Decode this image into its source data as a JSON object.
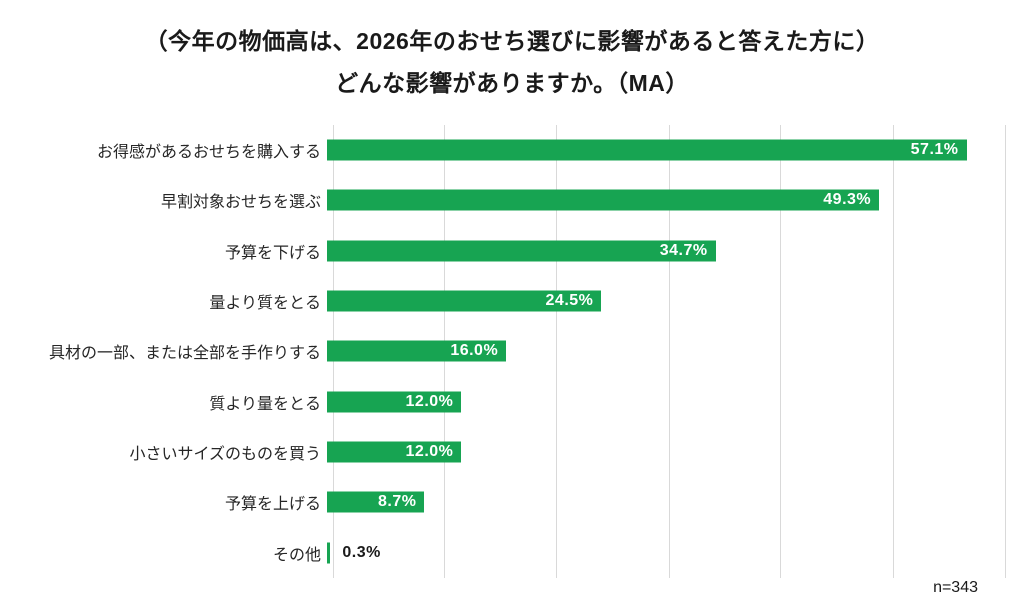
{
  "title": {
    "line1": "（今年の物価高は、2026年のおせち選びに影響があると答えた方に）",
    "line2": "どんな影響がありますか。（MA）"
  },
  "sample_size_label": "n=343",
  "colors": {
    "bar": "#17a452",
    "gridline": "#d9d9d9",
    "value_label_inside": "#ffffff",
    "value_label_outside": "#1a1a1a",
    "title_text": "#1a1a1a",
    "category_text": "#262626"
  },
  "chart_data": {
    "type": "bar",
    "orientation": "horizontal",
    "title": "（今年の物価高は、2026年のおせち選びに影響があると答えた方に）どんな影響がありますか。（MA）",
    "categories": [
      "お得感があるおせちを購入する",
      "早割対象おせちを選ぶ",
      "予算を下げる",
      "量より質をとる",
      "具材の一部、または全部を手作りする",
      "質より量をとる",
      "小さいサイズのものを買う",
      "予算を上げる",
      "その他"
    ],
    "values": [
      57.1,
      49.3,
      34.7,
      24.5,
      16.0,
      12.0,
      12.0,
      8.7,
      0.3
    ],
    "value_labels": [
      "57.1%",
      "49.3%",
      "34.7%",
      "24.5%",
      "16.0%",
      "12.0%",
      "12.0%",
      "8.7%",
      "0.3%"
    ],
    "xlabel": "",
    "ylabel": "",
    "xlim": [
      0,
      60
    ],
    "gridline_interval": 10,
    "grid": true,
    "legend": false,
    "annotation": "n=343"
  }
}
